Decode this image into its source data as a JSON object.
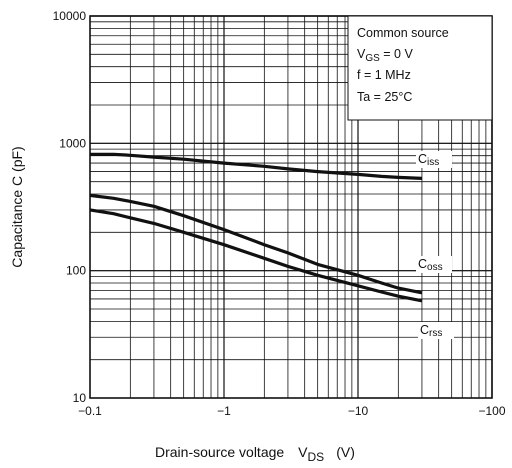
{
  "chart_data": {
    "type": "line",
    "x_scale": "log",
    "y_scale": "log",
    "xlim": [
      -0.1,
      -100
    ],
    "ylim": [
      10,
      10000
    ],
    "x_ticks": [
      "−0.1",
      "−1",
      "−10",
      "−100"
    ],
    "y_ticks": [
      "10",
      "100",
      "1000",
      "10000"
    ],
    "xlabel": {
      "main": "Drain-source voltage",
      "sym": "V",
      "sub": "DS",
      "unit": "(V)"
    },
    "ylabel": "Capacitance   C   (pF)",
    "grid": true,
    "conditions": {
      "line1": "Common source",
      "line2_sym": "V",
      "line2_sub": "GS",
      "line2_rest": " = 0 V",
      "line3": "f = 1 MHz",
      "line4": "Ta = 25°C"
    },
    "series": [
      {
        "name": "Ciss",
        "sym": "C",
        "sub": "iss",
        "x": [
          -0.1,
          -0.15,
          -0.2,
          -0.3,
          -0.5,
          -1,
          -2,
          -3,
          -5,
          -10,
          -15,
          -20,
          -30
        ],
        "y": [
          820,
          820,
          805,
          780,
          750,
          700,
          660,
          630,
          600,
          570,
          550,
          540,
          530
        ]
      },
      {
        "name": "Coss",
        "sym": "C",
        "sub": "oss",
        "x": [
          -0.1,
          -0.15,
          -0.2,
          -0.3,
          -0.5,
          -1,
          -2,
          -3,
          -5,
          -10,
          -15,
          -20,
          -30
        ],
        "y": [
          390,
          370,
          350,
          320,
          270,
          210,
          160,
          138,
          112,
          92,
          80,
          73,
          67
        ]
      },
      {
        "name": "Crss",
        "sym": "C",
        "sub": "rss",
        "x": [
          -0.1,
          -0.15,
          -0.2,
          -0.3,
          -0.5,
          -1,
          -2,
          -3,
          -5,
          -10,
          -15,
          -20,
          -30
        ],
        "y": [
          300,
          280,
          260,
          235,
          200,
          160,
          125,
          108,
          92,
          76,
          68,
          63,
          58
        ]
      }
    ]
  }
}
